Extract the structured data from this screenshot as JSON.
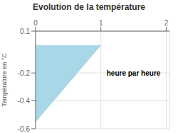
{
  "chart_data": {
    "type": "area",
    "title": "Evolution de la température",
    "y_label": "Température en °C",
    "annotations": [
      {
        "text": "heure par heure",
        "x": 1.5,
        "y": -0.2
      }
    ],
    "x": [
      0,
      0,
      1
    ],
    "values": [
      0,
      -0.55,
      0
    ],
    "color": "#a8d8e8",
    "xlim": [
      0,
      2.05
    ],
    "xticks": [
      0,
      1,
      2
    ],
    "ylim": [
      -0.6,
      0.1
    ],
    "yticks": [
      0.1,
      -0.2,
      -0.4,
      -0.6
    ],
    "grid": true
  }
}
